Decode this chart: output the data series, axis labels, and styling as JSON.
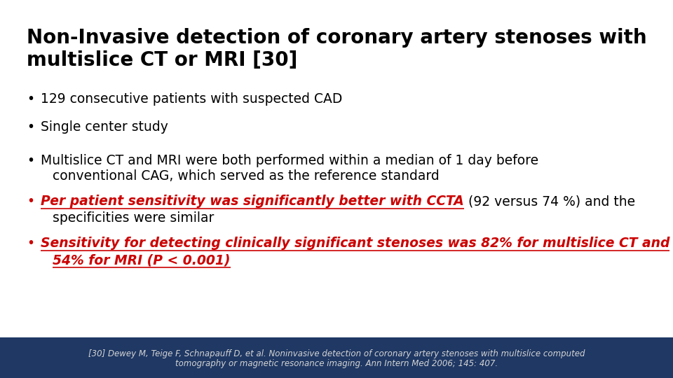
{
  "title_line1": "Non-Invasive detection of coronary artery stenoses with",
  "title_line2": "multislice CT or MRI [30]",
  "bullet1": "129 consecutive patients with suspected CAD",
  "bullet2": "Single center study",
  "bullet3a": "Multislice CT and MRI were both performed within a median of 1 day before",
  "bullet3b": "conventional CAG, which served as the reference standard",
  "bullet4_red": "Per patient sensitivity was significantly better with CCTA",
  "bullet4_black": " (92 versus 74 %) and the",
  "bullet4b": "specificities were similar",
  "bullet5a": "Sensitivity for detecting clinically significant stenoses was 82% for multislice CT and",
  "bullet5b": "54% for MRI (P < 0.001)",
  "footer_text1": "[30] Dewey M, Teige F, Schnapauff D, et al. Noninvasive detection of coronary artery stenoses with multislice computed",
  "footer_text2": "tomography or magnetic resonance imaging. Ann Intern Med 2006; 145: 407.",
  "footer_bg": "#1f3864",
  "footer_text_color": "#d4d4d4",
  "background_color": "#ffffff",
  "title_color": "#000000",
  "red_color": "#cc0000",
  "black_color": "#000000",
  "bullet_char": "•"
}
